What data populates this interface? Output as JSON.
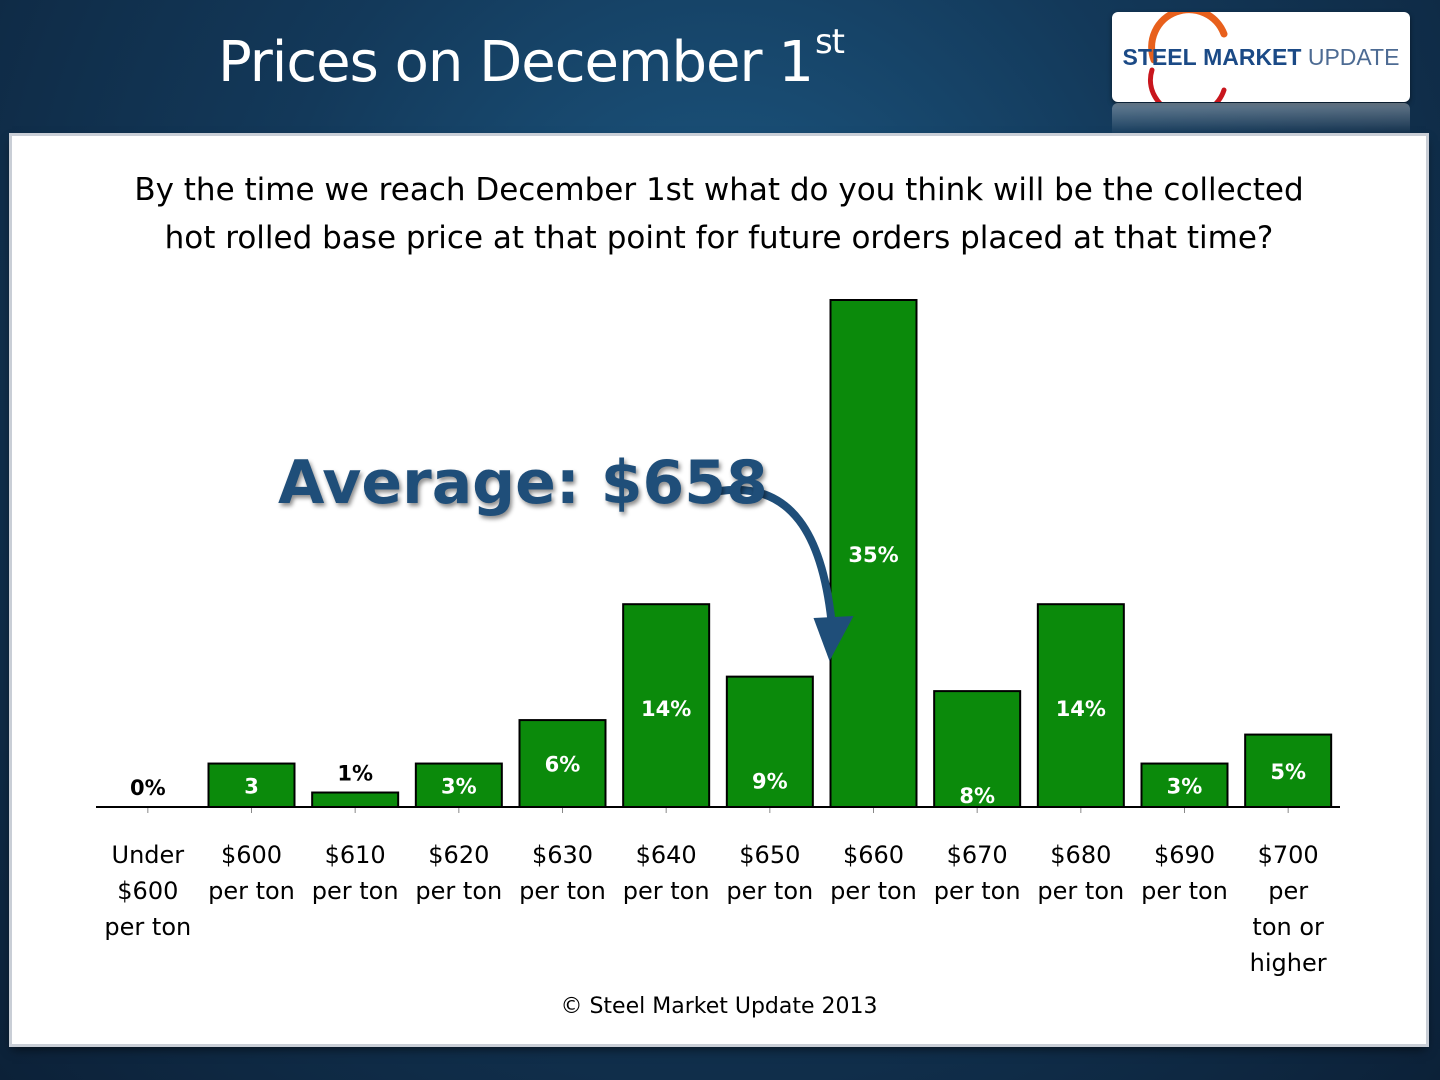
{
  "header": {
    "title": "Prices on December 1",
    "title_sup": "st",
    "logo": {
      "word1": "STEEL",
      "word2": "MARKET",
      "word3": "UPDATE"
    }
  },
  "colors": {
    "bar": "#0b8a0b",
    "bar_edge": "#000000",
    "average_text": "#1f4e79",
    "arrow": "#1f4e79"
  },
  "chart_data": {
    "type": "bar",
    "title": "By the time we reach December 1st what do you think will be the collected hot rolled base price at that point for future orders placed at that time?",
    "title_lines": [
      "By the time we reach December 1st what do you think will be the collected",
      "hot rolled base price at that point for future orders placed at that time?"
    ],
    "xlabel": "",
    "ylabel": "",
    "ylim": [
      0,
      35
    ],
    "unit": "%",
    "categories": [
      [
        "Under",
        "$600",
        "per ton"
      ],
      [
        "$600",
        "per ton"
      ],
      [
        "$610",
        "per ton"
      ],
      [
        "$620",
        "per ton"
      ],
      [
        "$630",
        "per ton"
      ],
      [
        "$640",
        "per ton"
      ],
      [
        "$650",
        "per ton"
      ],
      [
        "$660",
        "per ton"
      ],
      [
        "$670",
        "per ton"
      ],
      [
        "$680",
        "per ton"
      ],
      [
        "$690",
        "per ton"
      ],
      [
        "$700",
        "per",
        "ton or",
        "higher"
      ]
    ],
    "values": [
      0,
      3,
      1,
      3,
      6,
      14,
      9,
      35,
      8,
      14,
      3,
      5
    ],
    "data_labels": [
      "0%",
      "3",
      "1%",
      "3%",
      "6%",
      "14%",
      "9%",
      "35%",
      "8%",
      "14%",
      "3%",
      "5%"
    ],
    "annotation": {
      "text": "Average: $658",
      "points_to_category": "$660"
    },
    "grid": false,
    "legend": "none"
  },
  "footer": {
    "copyright": "© Steel Market Update 2013"
  }
}
